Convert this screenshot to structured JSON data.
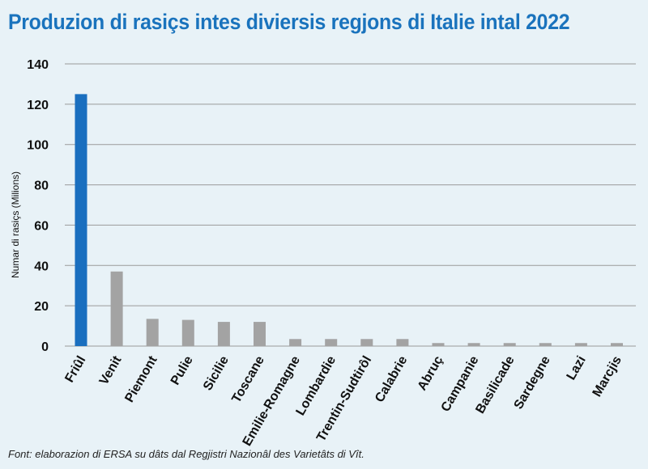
{
  "chart_data": {
    "type": "bar",
    "title": "Produzion di rasiçs intes diviersis regjons di Italie intal 2022",
    "ylabel": "Numar di rasiçs (Milions)",
    "xlabel": "",
    "source": "Font: elaborazion di ERSA su dâts dal Regjistri Nazionâl des Varietâts di Vît.",
    "categories": [
      "Friûl",
      "Venit",
      "Piemont",
      "Pulie",
      "Sicilie",
      "Toscane",
      "Emilie-Romagne",
      "Lombardie",
      "Trentin-Sudtirôl",
      "Calabrie",
      "Abruç",
      "Campanie",
      "Basilicade",
      "Sardegne",
      "Lazi",
      "Marcjis"
    ],
    "values": [
      125,
      37,
      13.5,
      13,
      12,
      12,
      3.5,
      3.5,
      3.5,
      3.5,
      1.5,
      1.5,
      1.5,
      1.5,
      1.5,
      1.5
    ],
    "ylim": [
      0,
      140
    ],
    "yticks": [
      0,
      20,
      40,
      60,
      80,
      100,
      120,
      140
    ],
    "grid": true,
    "colors": {
      "highlight": "#1a6fbf",
      "default": "#a3a3a3",
      "grid": "#9a9a9a",
      "background": "#e8f2f7"
    },
    "highlight_index": 0
  }
}
